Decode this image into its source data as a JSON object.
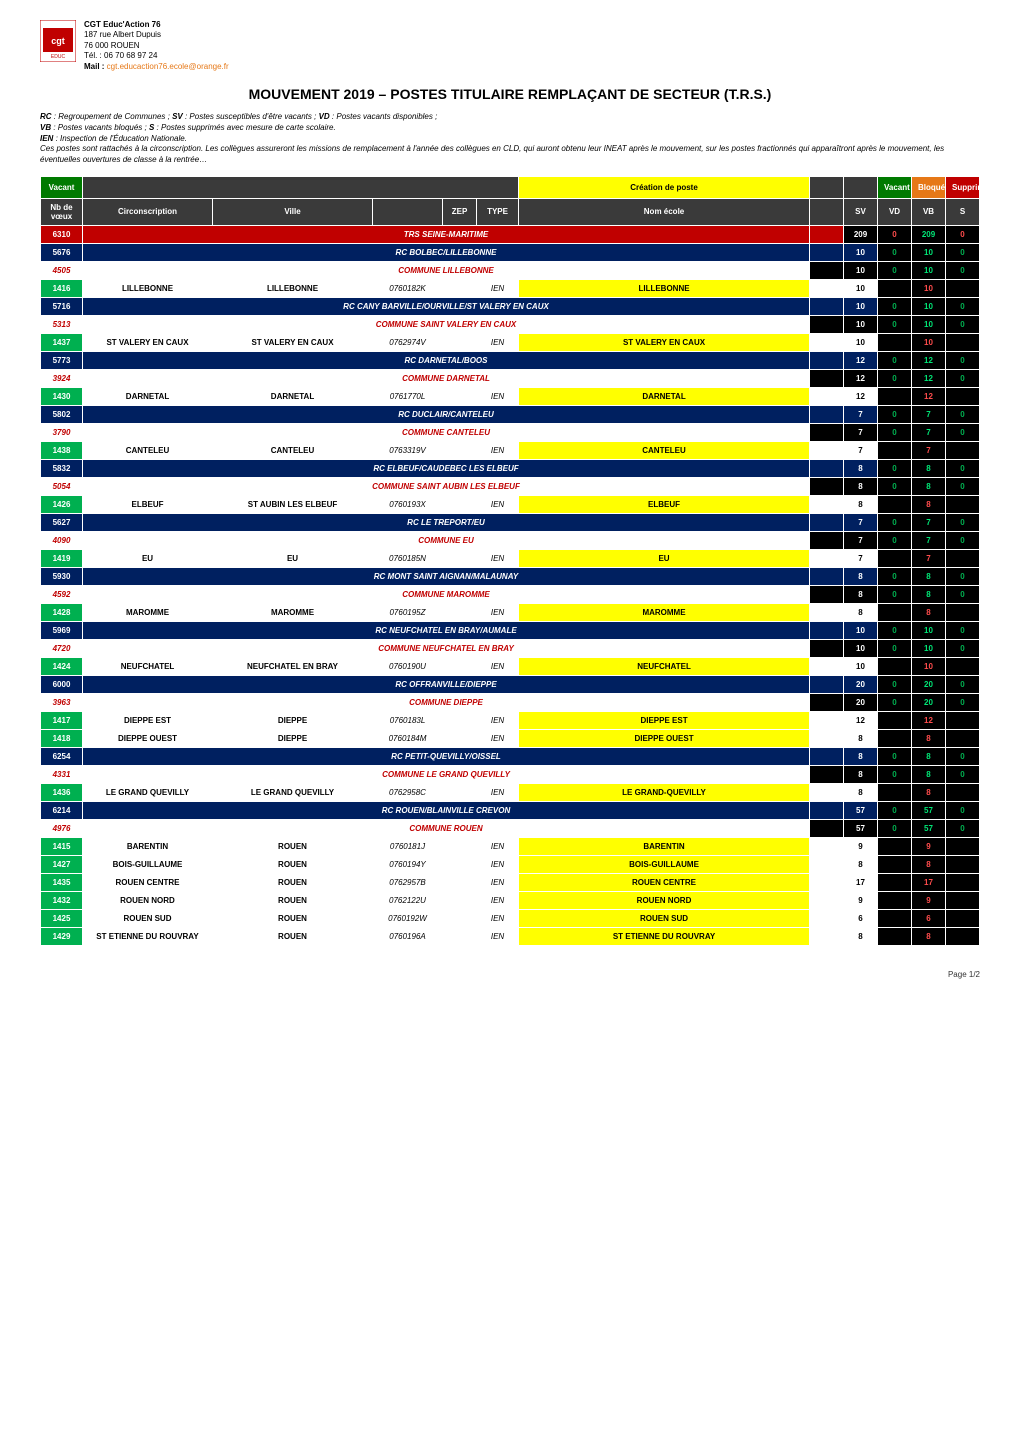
{
  "org": {
    "name": "CGT Educ'Action 76",
    "addr1": "187 rue Albert Dupuis",
    "addr2": "76 000 ROUEN",
    "tel": "Tél. : 06 70 68 97 24",
    "mail_label": "Mail : ",
    "mail": "cgt.educaction76.ecole@orange.fr"
  },
  "title": "MOUVEMENT 2019 – POSTES TITULAIRE REMPLAÇANT DE SECTEUR (T.R.S.)",
  "legend": {
    "l1_a": "RC",
    "l1_b": " : Regroupement de Communes ; ",
    "l1_c": "SV",
    "l1_d": " : Postes susceptibles d'être vacants ; ",
    "l1_e": "VD",
    "l1_f": " : Postes vacants disponibles ;",
    "l2_a": "VB",
    "l2_b": " : Postes vacants bloqués ; ",
    "l2_c": "S",
    "l2_d": " : Postes supprimés avec mesure de carte scolaire.",
    "l3_a": "IEN",
    "l3_b": " : Inspection de l'Éducation Nationale.",
    "l4": "Ces postes sont rattachés à la circonscription. Les collègues assureront les missions de remplacement à l'année des collègues en CLD, qui auront obtenu leur INEAT après le mouvement, sur les postes fractionnés qui apparaîtront après le mouvement, les éventuelles ouvertures de classe à la rentrée…"
  },
  "thead": {
    "vacant": "Vacant",
    "nbvoeux_l1": "Nb de",
    "nbvoeux_l2": "vœux",
    "circ": "Circonscription",
    "ville": "Ville",
    "code": "",
    "zep": "ZEP",
    "type": "TYPE",
    "creation": "Création de poste",
    "nomecole": "Nom école",
    "vacant2": "Vacant",
    "bloque": "Bloqué",
    "supprime": "Supprimé",
    "sv": "SV",
    "vd": "VD",
    "vb": "VB",
    "s": "S"
  },
  "rows": [
    {
      "kind": "trs",
      "nb": "6310",
      "label": "TRS SEINE-MARITIME",
      "sv": "209",
      "vd": "0",
      "vd_col": "red",
      "vb": "209",
      "s": "0",
      "s_col": "red"
    },
    {
      "kind": "rc",
      "nb": "5676",
      "label": "RC BOLBEC/LILLEBONNE",
      "sv": "10",
      "vd": "0",
      "vb": "10",
      "s": "0"
    },
    {
      "kind": "commune",
      "nb": "4505",
      "label": "COMMUNE LILLEBONNE",
      "sv": "10",
      "vd": "0",
      "vb": "10",
      "s": "0"
    },
    {
      "kind": "data",
      "nb": "1416",
      "circ": "LILLEBONNE",
      "ville": "LILLEBONNE",
      "code": "0760182K",
      "zep": "",
      "type": "IEN",
      "nomecole": "LILLEBONNE",
      "sv": "10",
      "vd": "",
      "vb": "10",
      "s": ""
    },
    {
      "kind": "rc",
      "nb": "5716",
      "label": "RC CANY BARVILLE/OURVILLE/ST VALERY EN CAUX",
      "sv": "10",
      "vd": "0",
      "vb": "10",
      "s": "0"
    },
    {
      "kind": "commune",
      "nb": "5313",
      "label": "COMMUNE SAINT VALERY EN CAUX",
      "sv": "10",
      "vd": "0",
      "vb": "10",
      "s": "0"
    },
    {
      "kind": "data",
      "nb": "1437",
      "circ": "ST VALERY EN CAUX",
      "ville": "ST VALERY EN CAUX",
      "code": "0762974V",
      "zep": "",
      "type": "IEN",
      "nomecole": "ST VALERY EN CAUX",
      "sv": "10",
      "vd": "",
      "vb": "10",
      "s": ""
    },
    {
      "kind": "rc",
      "nb": "5773",
      "label": "RC DARNETAL/BOOS",
      "sv": "12",
      "vd": "0",
      "vb": "12",
      "s": "0"
    },
    {
      "kind": "commune",
      "nb": "3924",
      "label": "COMMUNE DARNETAL",
      "sv": "12",
      "vd": "0",
      "vb": "12",
      "s": "0"
    },
    {
      "kind": "data",
      "nb": "1430",
      "circ": "DARNETAL",
      "ville": "DARNETAL",
      "code": "0761770L",
      "zep": "",
      "type": "IEN",
      "nomecole": "DARNETAL",
      "sv": "12",
      "vd": "",
      "vb": "12",
      "s": ""
    },
    {
      "kind": "rc",
      "nb": "5802",
      "label": "RC DUCLAIR/CANTELEU",
      "sv": "7",
      "vd": "0",
      "vb": "7",
      "s": "0"
    },
    {
      "kind": "commune",
      "nb": "3790",
      "label": "COMMUNE CANTELEU",
      "sv": "7",
      "vd": "0",
      "vb": "7",
      "s": "0"
    },
    {
      "kind": "data",
      "nb": "1438",
      "circ": "CANTELEU",
      "ville": "CANTELEU",
      "code": "0763319V",
      "zep": "",
      "type": "IEN",
      "nomecole": "CANTELEU",
      "sv": "7",
      "vd": "",
      "vb": "7",
      "s": ""
    },
    {
      "kind": "rc",
      "nb": "5832",
      "label": "RC ELBEUF/CAUDEBEC LES ELBEUF",
      "sv": "8",
      "vd": "0",
      "vb": "8",
      "s": "0"
    },
    {
      "kind": "commune",
      "nb": "5054",
      "label": "COMMUNE SAINT AUBIN LES ELBEUF",
      "sv": "8",
      "vd": "0",
      "vb": "8",
      "s": "0"
    },
    {
      "kind": "data",
      "nb": "1426",
      "circ": "ELBEUF",
      "ville": "ST AUBIN LES ELBEUF",
      "code": "0760193X",
      "zep": "",
      "type": "IEN",
      "nomecole": "ELBEUF",
      "sv": "8",
      "vd": "",
      "vb": "8",
      "s": ""
    },
    {
      "kind": "rc",
      "nb": "5627",
      "label": "RC LE TREPORT/EU",
      "sv": "7",
      "vd": "0",
      "vb": "7",
      "s": "0"
    },
    {
      "kind": "commune",
      "nb": "4090",
      "label": "COMMUNE EU",
      "sv": "7",
      "vd": "0",
      "vb": "7",
      "s": "0"
    },
    {
      "kind": "data",
      "nb": "1419",
      "circ": "EU",
      "ville": "EU",
      "code": "0760185N",
      "zep": "",
      "type": "IEN",
      "nomecole": "EU",
      "sv": "7",
      "vd": "",
      "vb": "7",
      "s": ""
    },
    {
      "kind": "rc",
      "nb": "5930",
      "label": "RC MONT SAINT AIGNAN/MALAUNAY",
      "sv": "8",
      "vd": "0",
      "vb": "8",
      "s": "0"
    },
    {
      "kind": "commune",
      "nb": "4592",
      "label": "COMMUNE MAROMME",
      "sv": "8",
      "vd": "0",
      "vb": "8",
      "s": "0"
    },
    {
      "kind": "data",
      "nb": "1428",
      "circ": "MAROMME",
      "ville": "MAROMME",
      "code": "0760195Z",
      "zep": "",
      "type": "IEN",
      "nomecole": "MAROMME",
      "sv": "8",
      "vd": "",
      "vb": "8",
      "s": ""
    },
    {
      "kind": "rc",
      "nb": "5969",
      "label": "RC NEUFCHATEL EN BRAY/AUMALE",
      "sv": "10",
      "vd": "0",
      "vb": "10",
      "s": "0"
    },
    {
      "kind": "commune",
      "nb": "4720",
      "label": "COMMUNE NEUFCHATEL EN BRAY",
      "sv": "10",
      "vd": "0",
      "vb": "10",
      "s": "0"
    },
    {
      "kind": "data",
      "nb": "1424",
      "circ": "NEUFCHATEL",
      "ville": "NEUFCHATEL EN BRAY",
      "code": "0760190U",
      "zep": "",
      "type": "IEN",
      "nomecole": "NEUFCHATEL",
      "sv": "10",
      "vd": "",
      "vb": "10",
      "s": ""
    },
    {
      "kind": "rc",
      "nb": "6000",
      "label": "RC OFFRANVILLE/DIEPPE",
      "sv": "20",
      "vd": "0",
      "vb": "20",
      "s": "0"
    },
    {
      "kind": "commune",
      "nb": "3963",
      "label": "COMMUNE DIEPPE",
      "sv": "20",
      "vd": "0",
      "vb": "20",
      "s": "0"
    },
    {
      "kind": "data",
      "nb": "1417",
      "circ": "DIEPPE EST",
      "ville": "DIEPPE",
      "code": "0760183L",
      "zep": "",
      "type": "IEN",
      "nomecole": "DIEPPE EST",
      "sv": "12",
      "vd": "",
      "vb": "12",
      "s": ""
    },
    {
      "kind": "data",
      "nb": "1418",
      "circ": "DIEPPE OUEST",
      "ville": "DIEPPE",
      "code": "0760184M",
      "zep": "",
      "type": "IEN",
      "nomecole": "DIEPPE OUEST",
      "sv": "8",
      "vd": "",
      "vb": "8",
      "s": ""
    },
    {
      "kind": "rc",
      "nb": "6254",
      "label": "RC PETIT-QUEVILLY/OISSEL",
      "sv": "8",
      "vd": "0",
      "vb": "8",
      "s": "0"
    },
    {
      "kind": "commune",
      "nb": "4331",
      "label": "COMMUNE LE GRAND QUEVILLY",
      "sv": "8",
      "vd": "0",
      "vb": "8",
      "s": "0"
    },
    {
      "kind": "data",
      "nb": "1436",
      "circ": "LE GRAND QUEVILLY",
      "ville": "LE GRAND QUEVILLY",
      "code": "0762958C",
      "zep": "",
      "type": "IEN",
      "nomecole": "LE GRAND-QUEVILLY",
      "sv": "8",
      "vd": "",
      "vb": "8",
      "s": ""
    },
    {
      "kind": "rc",
      "nb": "6214",
      "label": "RC ROUEN/BLAINVILLE CREVON",
      "sv": "57",
      "vd": "0",
      "vb": "57",
      "s": "0"
    },
    {
      "kind": "commune",
      "nb": "4976",
      "label": "COMMUNE ROUEN",
      "sv": "57",
      "vd": "0",
      "vb": "57",
      "s": "0"
    },
    {
      "kind": "data",
      "nb": "1415",
      "circ": "BARENTIN",
      "ville": "ROUEN",
      "code": "0760181J",
      "zep": "",
      "type": "IEN",
      "nomecole": "BARENTIN",
      "sv": "9",
      "vd": "",
      "vb": "9",
      "s": ""
    },
    {
      "kind": "data",
      "nb": "1427",
      "circ": "BOIS-GUILLAUME",
      "ville": "ROUEN",
      "code": "0760194Y",
      "zep": "",
      "type": "IEN",
      "nomecole": "BOIS-GUILLAUME",
      "sv": "8",
      "vd": "",
      "vb": "8",
      "s": ""
    },
    {
      "kind": "data",
      "nb": "1435",
      "circ": "ROUEN CENTRE",
      "ville": "ROUEN",
      "code": "0762957B",
      "zep": "",
      "type": "IEN",
      "nomecole": "ROUEN CENTRE",
      "sv": "17",
      "vd": "",
      "vb": "17",
      "s": ""
    },
    {
      "kind": "data",
      "nb": "1432",
      "circ": "ROUEN NORD",
      "ville": "ROUEN",
      "code": "0762122U",
      "zep": "",
      "type": "IEN",
      "nomecole": "ROUEN NORD",
      "sv": "9",
      "vd": "",
      "vb": "9",
      "s": ""
    },
    {
      "kind": "data",
      "nb": "1425",
      "circ": "ROUEN SUD",
      "ville": "ROUEN",
      "code": "0760192W",
      "zep": "",
      "type": "IEN",
      "nomecole": "ROUEN SUD",
      "sv": "6",
      "vd": "",
      "vb": "6",
      "s": ""
    },
    {
      "kind": "data",
      "nb": "1429",
      "circ": "ST ETIENNE DU ROUVRAY",
      "ville": "ROUEN",
      "code": "0760196A",
      "zep": "",
      "type": "IEN",
      "nomecole": "ST ETIENNE DU ROUVRAY",
      "sv": "8",
      "vd": "",
      "vb": "8",
      "s": ""
    }
  ],
  "pager": "Page 1/2",
  "colors": {
    "darkgreen": "#007a00",
    "green": "#00b050",
    "red": "#c00000",
    "navy": "#002060",
    "black": "#000000",
    "yellow": "#ffff00",
    "headerbg": "#3a3a3a",
    "orange": "#e67817"
  }
}
